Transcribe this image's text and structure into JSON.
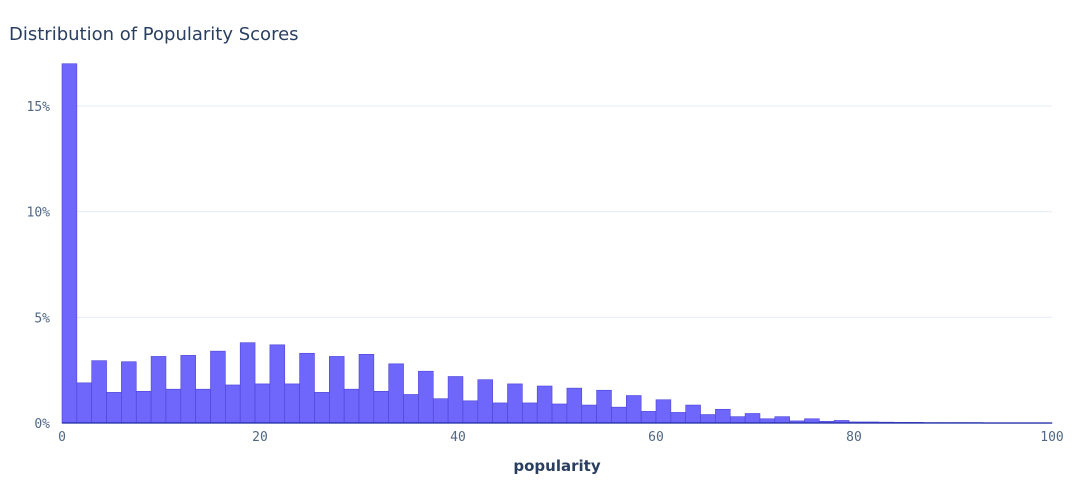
{
  "chart_data": {
    "type": "bar",
    "title": "Distribution of Popularity Scores",
    "xlabel": "popularity",
    "ylabel": "",
    "xlim": [
      0,
      100
    ],
    "ylim": [
      0,
      17.5
    ],
    "x_ticks": [
      0,
      20,
      40,
      60,
      80,
      100
    ],
    "y_ticks": [
      0,
      5,
      10,
      15
    ],
    "y_tick_suffix": "%",
    "grid": "horizontal",
    "bin_width": 1.5,
    "bin_start": 0,
    "values": [
      17.0,
      1.9,
      2.95,
      1.45,
      2.9,
      1.5,
      3.15,
      1.6,
      3.2,
      1.6,
      3.4,
      1.8,
      3.8,
      1.85,
      3.7,
      1.85,
      3.3,
      1.45,
      3.15,
      1.6,
      3.25,
      1.5,
      2.8,
      1.35,
      2.45,
      1.15,
      2.2,
      1.05,
      2.05,
      0.95,
      1.85,
      0.95,
      1.75,
      0.9,
      1.65,
      0.85,
      1.55,
      0.75,
      1.3,
      0.55,
      1.1,
      0.5,
      0.85,
      0.4,
      0.65,
      0.3,
      0.45,
      0.2,
      0.3,
      0.1,
      0.2,
      0.08,
      0.12,
      0.05,
      0.05,
      0.04,
      0.03,
      0.03,
      0.02,
      0.02,
      0.02,
      0.02,
      0.01,
      0.01,
      0.01,
      0.01,
      0.01
    ],
    "color": "#6f66fb",
    "bar_outline": "#4c44d6",
    "axis_line_color": "#1c2aa0",
    "text_color": "#506784"
  }
}
